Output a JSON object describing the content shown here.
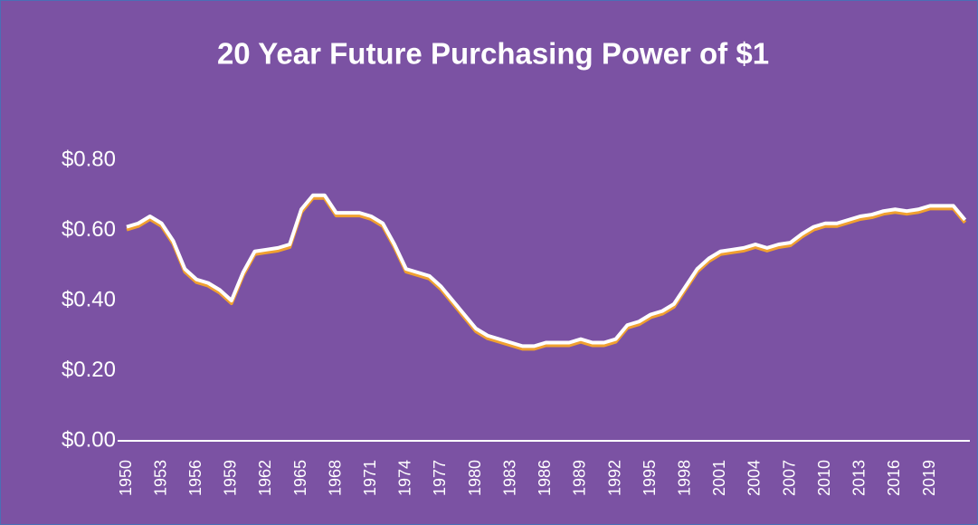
{
  "chart_data": {
    "type": "line",
    "title": "20 Year Future Purchasing Power of $1",
    "categories": [
      "1950",
      null,
      null,
      "1953",
      null,
      null,
      "1956",
      null,
      null,
      "1959",
      null,
      null,
      "1962",
      null,
      null,
      "1965",
      null,
      null,
      "1968",
      null,
      null,
      "1971",
      null,
      null,
      "1974",
      null,
      null,
      "1977",
      null,
      null,
      "1980",
      null,
      null,
      "1983",
      null,
      null,
      "1986",
      null,
      null,
      "1989",
      null,
      null,
      "1992",
      null,
      null,
      "1995",
      null,
      null,
      "1998",
      null,
      null,
      "2001",
      null,
      null,
      "2004",
      null,
      null,
      "2007",
      null,
      null,
      "2010",
      null,
      null,
      "2013",
      null,
      null,
      "2016",
      null,
      null,
      "2019",
      null,
      null,
      null
    ],
    "values": [
      0.61,
      0.62,
      0.64,
      0.62,
      0.57,
      0.49,
      0.46,
      0.45,
      0.43,
      0.4,
      0.48,
      0.54,
      0.545,
      0.55,
      0.56,
      0.66,
      0.7,
      0.7,
      0.65,
      0.65,
      0.65,
      0.64,
      0.62,
      0.56,
      0.49,
      0.48,
      0.47,
      0.44,
      0.4,
      0.36,
      0.32,
      0.3,
      0.29,
      0.28,
      0.27,
      0.27,
      0.28,
      0.28,
      0.28,
      0.29,
      0.28,
      0.28,
      0.29,
      0.33,
      0.34,
      0.36,
      0.37,
      0.39,
      0.44,
      0.49,
      0.52,
      0.54,
      0.545,
      0.55,
      0.56,
      0.55,
      0.56,
      0.565,
      0.59,
      0.61,
      0.62,
      0.62,
      0.63,
      0.64,
      0.645,
      0.655,
      0.66,
      0.655,
      0.66,
      0.67,
      0.67,
      0.67,
      0.63
    ],
    "color": "#ffffff",
    "ylim": [
      0,
      0.8
    ],
    "yticks": [
      {
        "value": 0,
        "label": "$0.00"
      },
      {
        "value": 0.2,
        "label": "$0.20"
      },
      {
        "value": 0.4,
        "label": "$0.40"
      },
      {
        "value": 0.6,
        "label": "$0.60"
      },
      {
        "value": 0.8,
        "label": "$0.80"
      }
    ],
    "grid": false
  }
}
